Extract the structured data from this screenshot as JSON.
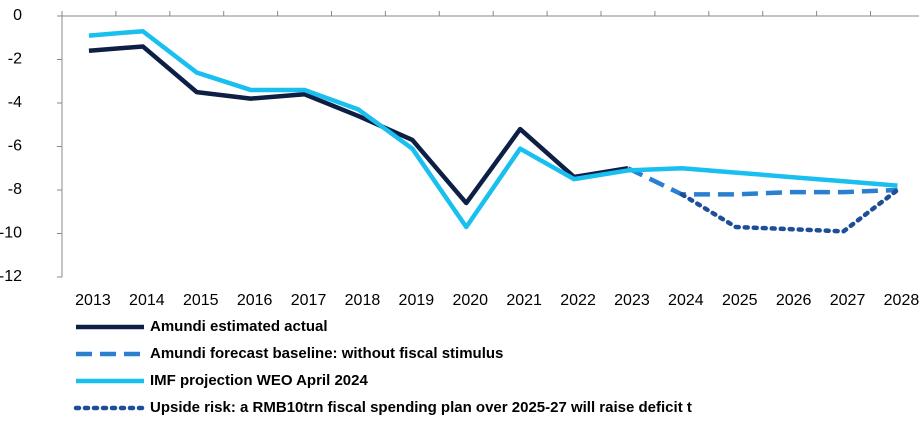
{
  "chart_data": {
    "type": "line",
    "categories": [
      "2013",
      "2014",
      "2015",
      "2016",
      "2017",
      "2018",
      "2019",
      "2020",
      "2021",
      "2022",
      "2023",
      "2024",
      "2025",
      "2026",
      "2027",
      "2028"
    ],
    "series": [
      {
        "name": "Amundi estimated actual",
        "color": "#0d1f45",
        "style": "solid",
        "values": [
          -1.6,
          -1.4,
          -3.5,
          -3.8,
          -3.6,
          -4.6,
          -5.7,
          -8.6,
          -5.2,
          -7.4,
          -7.0,
          null,
          null,
          null,
          null,
          null
        ]
      },
      {
        "name": "Amundi forecast baseline: without fiscal stimulus",
        "color": "#2a7fd0",
        "style": "dashed",
        "values": [
          null,
          null,
          null,
          null,
          null,
          null,
          null,
          null,
          null,
          null,
          -7.0,
          -8.2,
          -8.2,
          -8.1,
          -8.1,
          -8.0
        ]
      },
      {
        "name": "IMF projection WEO April 2024",
        "color": "#19c0ef",
        "style": "solid",
        "values": [
          -0.9,
          -0.7,
          -2.6,
          -3.4,
          -3.4,
          -4.3,
          -6.1,
          -9.7,
          -6.1,
          -7.5,
          -7.1,
          -7.0,
          -7.2,
          -7.4,
          -7.6,
          -7.8
        ]
      },
      {
        "name": "Upside risk: a RMB10trn fiscal spending plan over 2025-27 will raise deficit t",
        "color": "#1f4e99",
        "style": "dotted",
        "values": [
          null,
          null,
          null,
          null,
          null,
          null,
          null,
          null,
          null,
          null,
          null,
          -8.2,
          -9.7,
          -9.8,
          -9.9,
          -8.0
        ]
      }
    ],
    "ylim": [
      -12,
      0
    ],
    "yticks": [
      0,
      -2,
      -4,
      -6,
      -8,
      -10,
      -12
    ],
    "grid": false
  }
}
